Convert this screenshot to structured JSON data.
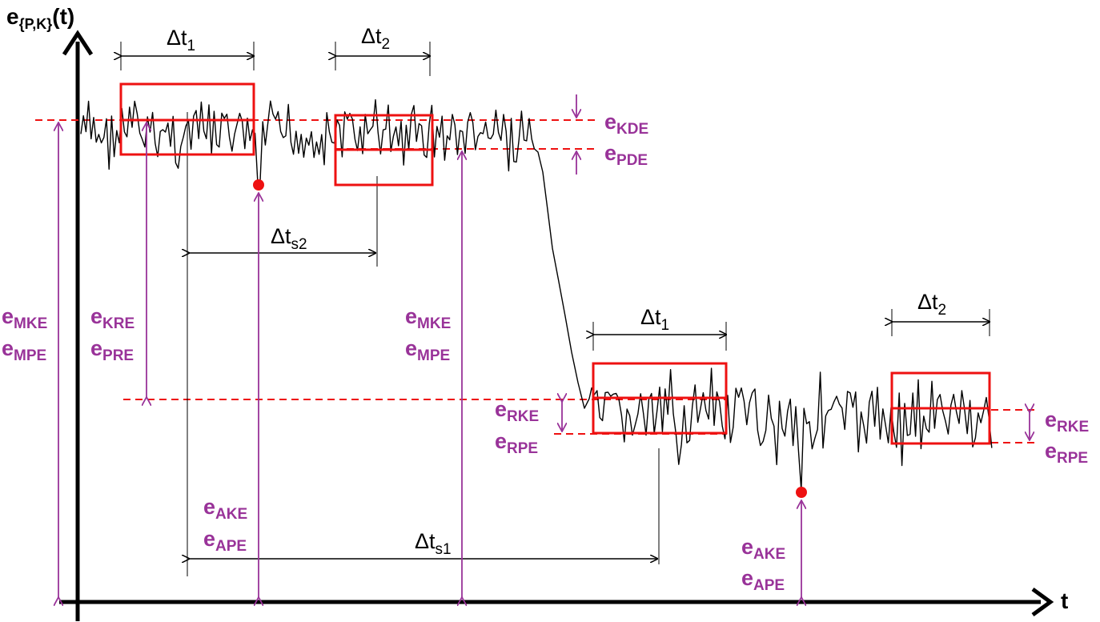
{
  "axes": {
    "y_main": "e",
    "y_sub": "{P,K}",
    "y_tail": "(t)",
    "x_label": "t"
  },
  "intervals": {
    "dt": "Δt",
    "one": "1",
    "two": "2",
    "s1": "s1",
    "s2": "s2"
  },
  "labels": {
    "e": "e",
    "kde": "KDE",
    "pde": "PDE",
    "mke": "MKE",
    "mpe": "MPE",
    "kre": "KRE",
    "pre": "PRE",
    "rke": "RKE",
    "rpe": "RPE",
    "ake": "AKE",
    "ape": "APE"
  },
  "colors": {
    "signal": "#000000",
    "window_box": "#ee1111",
    "dashed_reference": "#ee1111",
    "annotation": "#993399",
    "extreme_point": "#ee1111"
  }
}
